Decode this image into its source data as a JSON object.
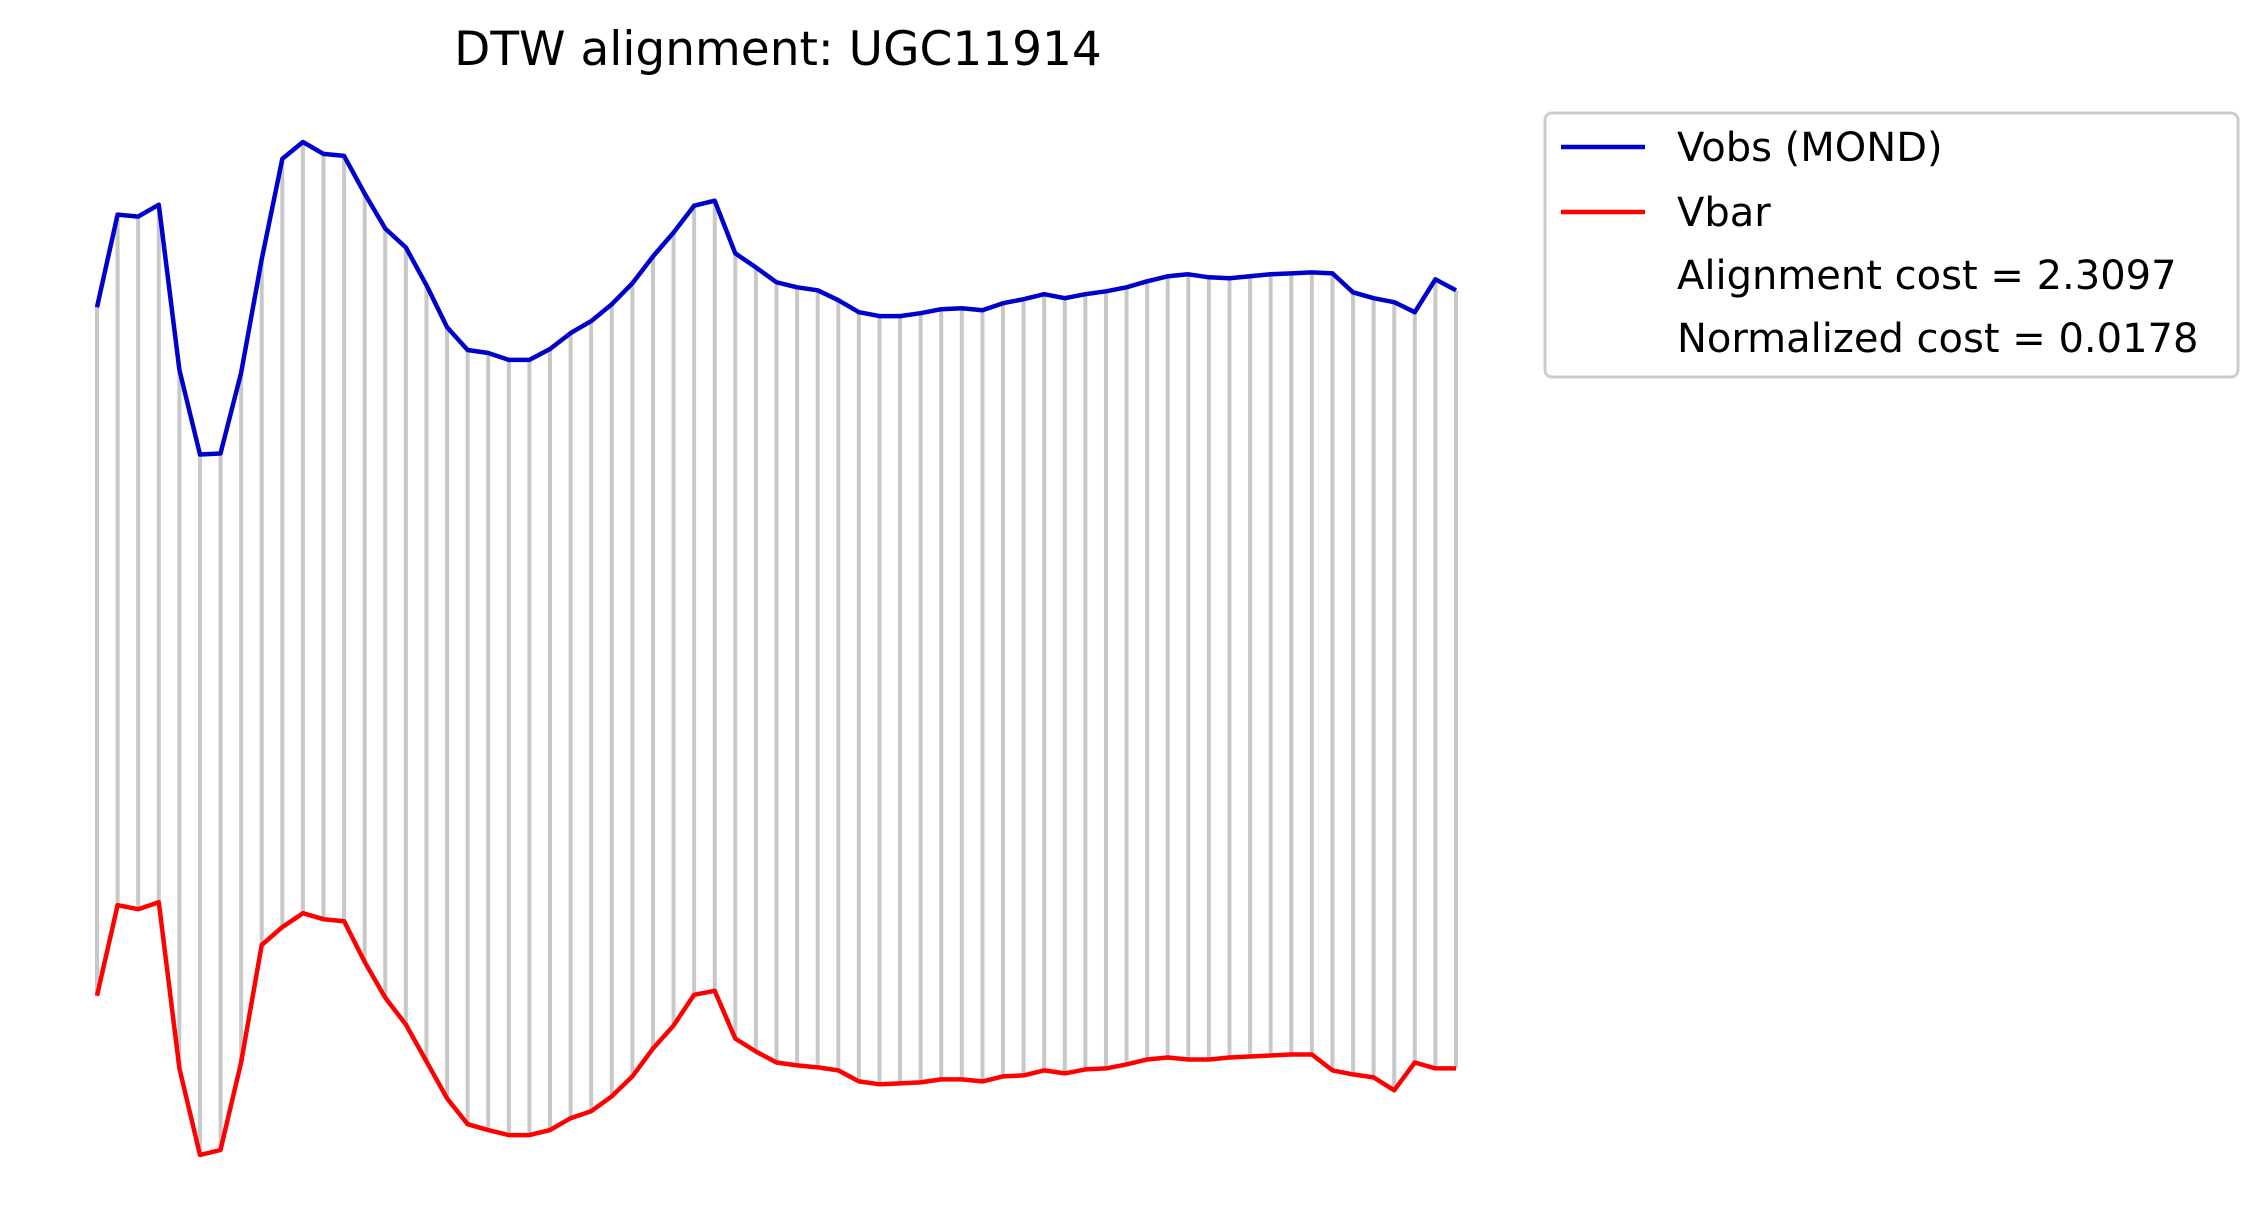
{
  "chart_data": {
    "type": "line",
    "title": "DTW alignment: UGC11914",
    "xlabel": "",
    "ylabel": "",
    "axes_visible": false,
    "grid": false,
    "legend_position": "outside upper right",
    "alignment_lines_color": "#c8c8c8",
    "series": [
      {
        "name": "Vobs (MOND)",
        "color": "#0000cd",
        "values": [
          0.775,
          0.868,
          0.866,
          0.878,
          0.712,
          0.627,
          0.628,
          0.709,
          0.823,
          0.924,
          0.941,
          0.929,
          0.927,
          0.889,
          0.854,
          0.835,
          0.797,
          0.755,
          0.732,
          0.729,
          0.722,
          0.722,
          0.733,
          0.749,
          0.761,
          0.778,
          0.799,
          0.826,
          0.85,
          0.877,
          0.882,
          0.829,
          0.815,
          0.8,
          0.795,
          0.792,
          0.782,
          0.77,
          0.766,
          0.766,
          0.769,
          0.773,
          0.774,
          0.772,
          0.779,
          0.783,
          0.788,
          0.784,
          0.788,
          0.791,
          0.795,
          0.801,
          0.806,
          0.808,
          0.805,
          0.804,
          0.806,
          0.808,
          0.809,
          0.81,
          0.809,
          0.79,
          0.784,
          0.78,
          0.77,
          0.803,
          0.792
        ]
      },
      {
        "name": "Vbar",
        "color": "#ff0000",
        "values": [
          0.083,
          0.174,
          0.17,
          0.177,
          0.01,
          -0.077,
          -0.072,
          0.016,
          0.134,
          0.152,
          0.166,
          0.16,
          0.158,
          0.117,
          0.081,
          0.054,
          0.017,
          -0.02,
          -0.046,
          -0.052,
          -0.057,
          -0.057,
          -0.052,
          -0.04,
          -0.033,
          -0.018,
          0.002,
          0.03,
          0.053,
          0.084,
          0.088,
          0.04,
          0.027,
          0.016,
          0.013,
          0.011,
          0.008,
          -0.003,
          -0.006,
          -0.005,
          -0.004,
          -0.001,
          -0.001,
          -0.003,
          0.002,
          0.003,
          0.008,
          0.005,
          0.009,
          0.01,
          0.014,
          0.019,
          0.021,
          0.019,
          0.019,
          0.021,
          0.022,
          0.023,
          0.024,
          0.024,
          0.008,
          0.004,
          0.001,
          -0.012,
          0.016,
          0.01,
          0.01
        ]
      }
    ],
    "annotations": [
      "Alignment cost = 2.3097",
      "Normalized cost = 0.0178"
    ]
  }
}
